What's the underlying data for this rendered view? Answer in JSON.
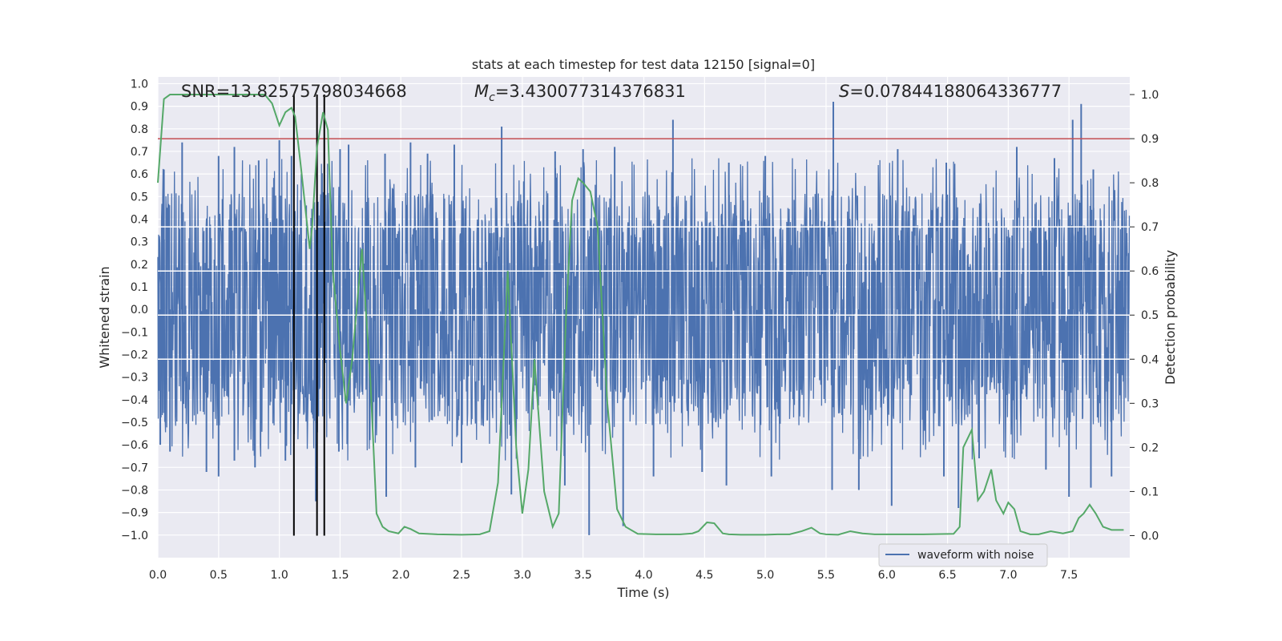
{
  "chart_data": {
    "type": "line",
    "title": "stats at each timestep for test data 12150 [signal=0]",
    "xlabel": "Time (s)",
    "ylabel": "Whitened strain",
    "ylabel_right": "Detection probability",
    "xlim": [
      0,
      8
    ],
    "ylim": [
      -1.1,
      1.03
    ],
    "ylim_right": [
      -0.05,
      1.04
    ],
    "xticks": [
      "0.0",
      "0.5",
      "1.0",
      "1.5",
      "2.0",
      "2.5",
      "3.0",
      "3.5",
      "4.0",
      "4.5",
      "5.0",
      "5.5",
      "6.0",
      "6.5",
      "7.0",
      "7.5"
    ],
    "xtick_values": [
      0,
      0.5,
      1,
      1.5,
      2,
      2.5,
      3,
      3.5,
      4,
      4.5,
      5,
      5.5,
      6,
      6.5,
      7,
      7.5
    ],
    "yticks": [
      "1.0",
      "0.9",
      "0.8",
      "0.7",
      "0.6",
      "0.5",
      "0.4",
      "0.3",
      "0.2",
      "0.1",
      "0.0",
      "−0.1",
      "−0.2",
      "−0.3",
      "−0.4",
      "−0.5",
      "−0.6",
      "−0.7",
      "−0.8",
      "−0.9",
      "−1.0"
    ],
    "ytick_values": [
      1.0,
      0.9,
      0.8,
      0.7,
      0.6,
      0.5,
      0.4,
      0.3,
      0.2,
      0.1,
      0.0,
      -0.1,
      -0.2,
      -0.3,
      -0.4,
      -0.5,
      -0.6,
      -0.7,
      -0.8,
      -0.9,
      -1.0
    ],
    "yticks_right": [
      "1.0",
      "0.9",
      "0.8",
      "0.7",
      "0.6",
      "0.5",
      "0.4",
      "0.3",
      "0.2",
      "0.1",
      "0.0"
    ],
    "ytick_right_values": [
      1.0,
      0.9,
      0.8,
      0.7,
      0.6,
      0.5,
      0.4,
      0.3,
      0.2,
      0.1,
      0.0
    ],
    "annotations": {
      "snr": "SNR=13.82575798034668",
      "mc_symbol": "M",
      "mc_sub": "c",
      "mc_value": "=3.430077314376831",
      "s_symbol": "S",
      "s_value": "=0.07844188064336777"
    },
    "legend": {
      "label": "waveform with noise",
      "placement": "lower-right"
    },
    "threshold_right": 0.9,
    "vertical_markers_s": [
      1.12,
      1.31,
      1.37
    ],
    "waveform": {
      "name": "waveform with noise",
      "color": "#4c72b0",
      "envelope_note": "dense noise approx within -0.42..0.52 with spikes up to about ±0.95",
      "peaks_top": [
        [
          0.05,
          0.62
        ],
        [
          0.2,
          0.74
        ],
        [
          0.5,
          0.68
        ],
        [
          0.63,
          0.72
        ],
        [
          0.83,
          0.66
        ],
        [
          1.0,
          0.75
        ],
        [
          1.1,
          0.68
        ],
        [
          1.5,
          0.71
        ],
        [
          1.57,
          0.73
        ],
        [
          1.87,
          0.69
        ],
        [
          2.08,
          0.74
        ],
        [
          2.22,
          0.69
        ],
        [
          2.44,
          0.73
        ],
        [
          2.83,
          0.81
        ],
        [
          3.27,
          0.7
        ],
        [
          3.5,
          0.71
        ],
        [
          3.76,
          0.72
        ],
        [
          4.24,
          0.84
        ],
        [
          4.7,
          0.65
        ],
        [
          5.0,
          0.68
        ],
        [
          5.56,
          0.92
        ],
        [
          6.09,
          0.71
        ],
        [
          6.49,
          0.65
        ],
        [
          7.07,
          0.72
        ],
        [
          7.38,
          0.67
        ],
        [
          7.53,
          0.84
        ],
        [
          7.6,
          0.91
        ],
        [
          7.7,
          0.62
        ]
      ],
      "peaks_bottom": [
        [
          0.02,
          -0.6
        ],
        [
          0.1,
          -0.63
        ],
        [
          0.4,
          -0.72
        ],
        [
          0.5,
          -0.74
        ],
        [
          0.63,
          -0.67
        ],
        [
          0.8,
          -0.7
        ],
        [
          1.05,
          -0.67
        ],
        [
          1.3,
          -0.85
        ],
        [
          1.49,
          -0.63
        ],
        [
          1.88,
          -0.83
        ],
        [
          2.12,
          -0.7
        ],
        [
          2.5,
          -0.68
        ],
        [
          2.91,
          -0.82
        ],
        [
          3.35,
          -0.78
        ],
        [
          3.55,
          -1.0
        ],
        [
          3.83,
          -0.96
        ],
        [
          4.08,
          -0.74
        ],
        [
          4.48,
          -0.72
        ],
        [
          4.68,
          -0.78
        ],
        [
          5.05,
          -0.74
        ],
        [
          5.55,
          -0.8
        ],
        [
          5.77,
          -0.8
        ],
        [
          6.04,
          -0.87
        ],
        [
          6.47,
          -0.74
        ],
        [
          6.59,
          -0.88
        ],
        [
          6.76,
          -0.66
        ],
        [
          7.31,
          -0.71
        ],
        [
          7.5,
          -0.83
        ],
        [
          7.68,
          -0.79
        ],
        [
          7.85,
          -0.74
        ]
      ]
    },
    "detection_probability": {
      "name": "detection probability",
      "color": "#55a868",
      "x": [
        0,
        0.05,
        0.1,
        0.2,
        0.3,
        0.4,
        0.5,
        0.6,
        0.7,
        0.8,
        0.88,
        0.94,
        1.0,
        1.05,
        1.1,
        1.13,
        1.18,
        1.25,
        1.27,
        1.31,
        1.36,
        1.4,
        1.44,
        1.5,
        1.55,
        1.6,
        1.68,
        1.75,
        1.8,
        1.85,
        1.9,
        1.98,
        2.03,
        2.08,
        2.15,
        2.3,
        2.5,
        2.65,
        2.73,
        2.8,
        2.88,
        2.95,
        3.0,
        3.05,
        3.1,
        3.18,
        3.25,
        3.3,
        3.36,
        3.41,
        3.46,
        3.5,
        3.56,
        3.62,
        3.7,
        3.78,
        3.85,
        3.95,
        4.1,
        4.3,
        4.4,
        4.45,
        4.52,
        4.58,
        4.65,
        4.7,
        4.8,
        5.0,
        5.1,
        5.2,
        5.3,
        5.38,
        5.45,
        5.5,
        5.6,
        5.7,
        5.8,
        5.9,
        6.0,
        6.3,
        6.55,
        6.6,
        6.63,
        6.7,
        6.75,
        6.8,
        6.86,
        6.9,
        6.96,
        7.0,
        7.05,
        7.1,
        7.18,
        7.25,
        7.35,
        7.45,
        7.53,
        7.58,
        7.62,
        7.67,
        7.72,
        7.78,
        7.85,
        7.95
      ],
      "y": [
        0.8,
        0.99,
        1.0,
        1.0,
        1.0,
        1.0,
        1.0,
        1.0,
        1.0,
        1.0,
        1.0,
        0.98,
        0.93,
        0.96,
        0.97,
        0.95,
        0.83,
        0.65,
        0.7,
        0.88,
        0.96,
        0.92,
        0.6,
        0.42,
        0.3,
        0.4,
        0.65,
        0.35,
        0.05,
        0.02,
        0.01,
        0.005,
        0.02,
        0.015,
        0.005,
        0.003,
        0.002,
        0.003,
        0.01,
        0.12,
        0.6,
        0.2,
        0.05,
        0.15,
        0.4,
        0.1,
        0.02,
        0.05,
        0.5,
        0.76,
        0.81,
        0.8,
        0.78,
        0.7,
        0.3,
        0.06,
        0.02,
        0.004,
        0.003,
        0.003,
        0.005,
        0.01,
        0.03,
        0.028,
        0.005,
        0.003,
        0.002,
        0.002,
        0.003,
        0.003,
        0.01,
        0.018,
        0.005,
        0.003,
        0.002,
        0.01,
        0.005,
        0.003,
        0.003,
        0.003,
        0.004,
        0.02,
        0.2,
        0.24,
        0.08,
        0.1,
        0.15,
        0.08,
        0.05,
        0.075,
        0.06,
        0.01,
        0.003,
        0.003,
        0.01,
        0.005,
        0.01,
        0.04,
        0.05,
        0.07,
        0.05,
        0.02,
        0.013,
        0.013
      ]
    }
  }
}
